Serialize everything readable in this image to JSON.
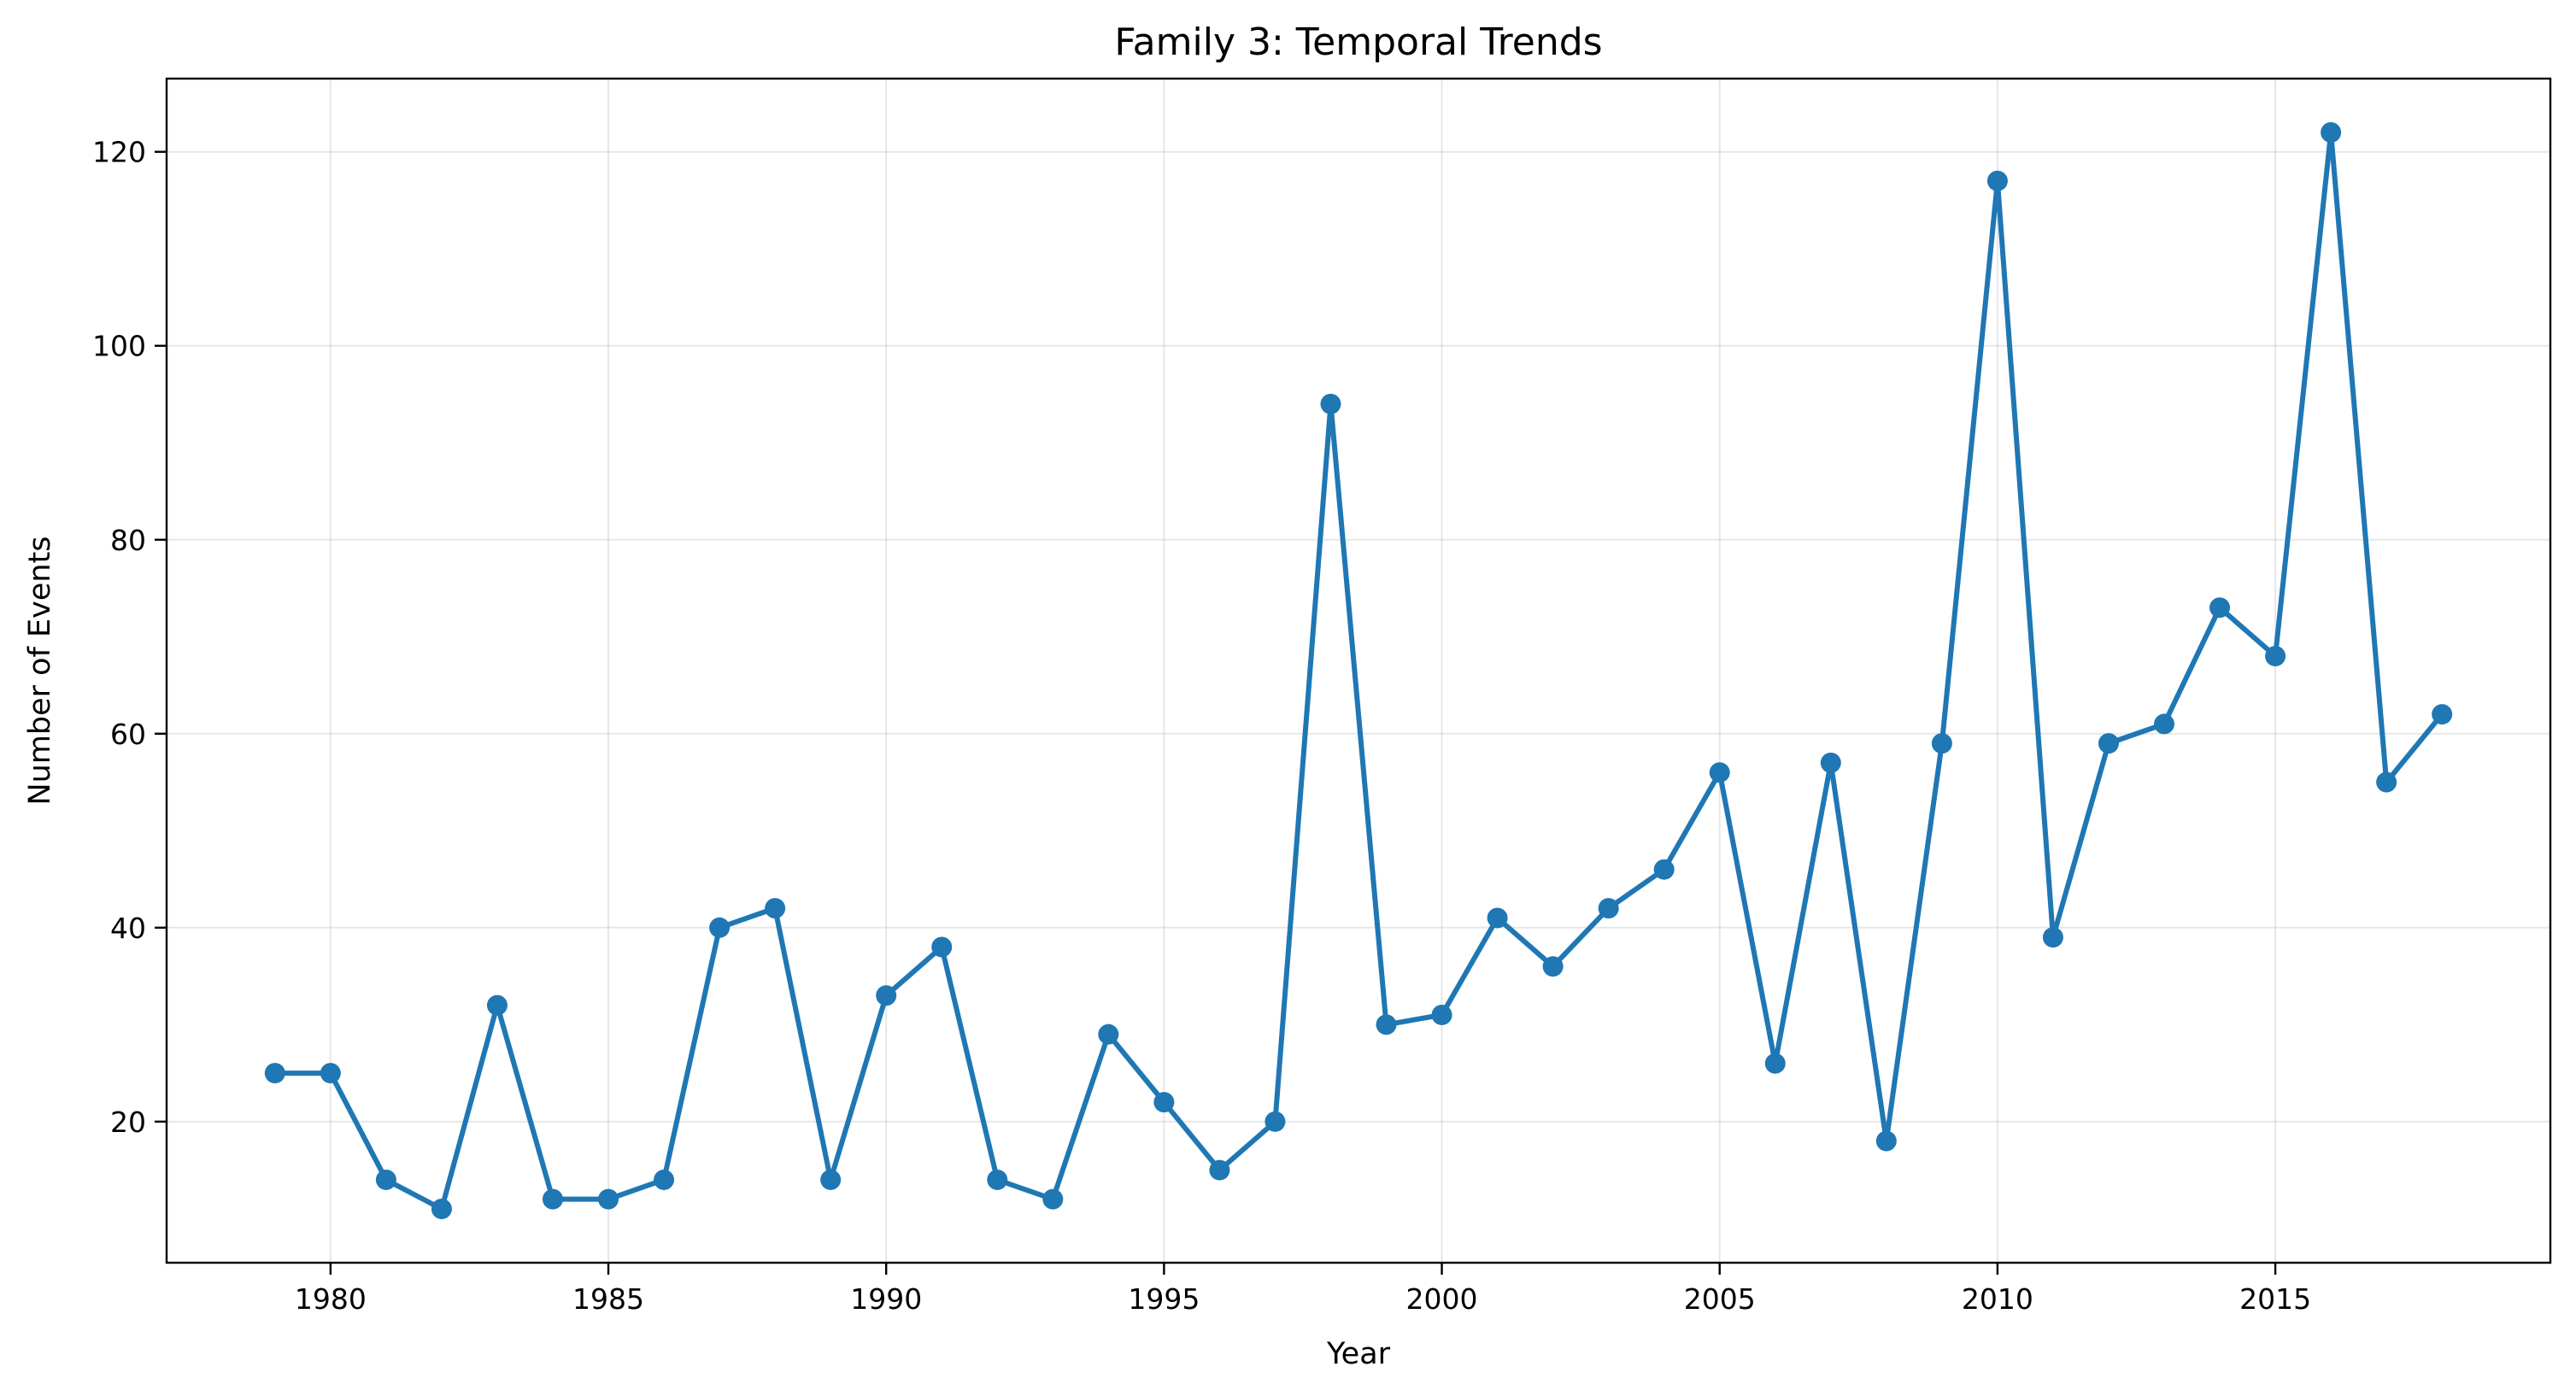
{
  "chart_data": {
    "type": "line",
    "title": "Family 3: Temporal Trends",
    "xlabel": "Year",
    "ylabel": "Number of Events",
    "x": [
      1979,
      1980,
      1981,
      1982,
      1983,
      1984,
      1985,
      1986,
      1987,
      1988,
      1989,
      1990,
      1991,
      1992,
      1993,
      1994,
      1995,
      1996,
      1997,
      1998,
      1999,
      2000,
      2001,
      2002,
      2003,
      2004,
      2005,
      2006,
      2007,
      2008,
      2009,
      2010,
      2011,
      2012,
      2013,
      2014,
      2015,
      2016,
      2017,
      2018
    ],
    "series": [
      {
        "values": [
          25,
          25,
          14,
          11,
          32,
          12,
          12,
          14,
          40,
          42,
          14,
          33,
          38,
          14,
          12,
          29,
          22,
          15,
          20,
          94,
          30,
          31,
          41,
          36,
          42,
          46,
          56,
          26,
          57,
          18,
          59,
          117,
          39,
          59,
          61,
          73,
          68,
          122,
          55,
          62
        ],
        "color": "#1f77b4"
      }
    ],
    "xlim": [
      1977.05,
      2019.95
    ],
    "ylim": [
      5.45,
      127.55
    ],
    "xticks": [
      1980,
      1985,
      1990,
      1995,
      2000,
      2005,
      2010,
      2015
    ],
    "yticks": [
      20,
      40,
      60,
      80,
      100,
      120
    ],
    "grid": true,
    "marker": "circle"
  }
}
